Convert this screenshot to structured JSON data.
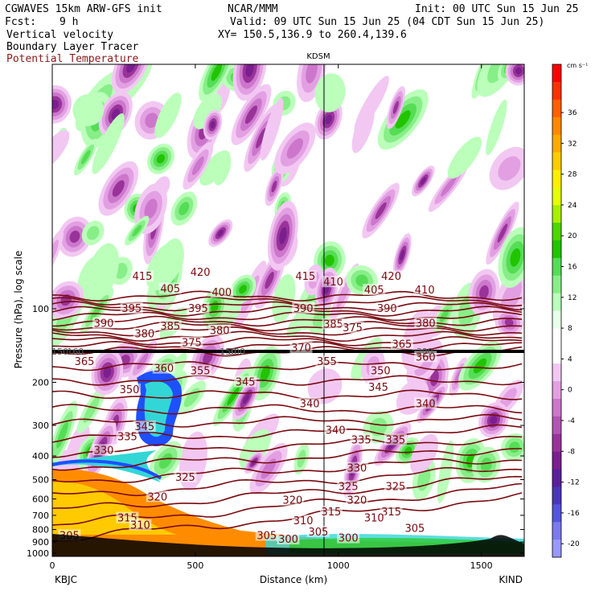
{
  "header": {
    "model": "CGWAVES 15km ARW-GFS init",
    "org": "NCAR/MMM",
    "init": "Init: 00 UTC Sun 15 Jun 25",
    "fcst_label": "Fcst:",
    "fcst_value": "9 h",
    "valid": "Valid: 09 UTC Sun 15 Jun 25 (04 CDT Sun 15 Jun 25)",
    "xy": "XY= 150.5,136.9 to 260.4,139.6",
    "field1": "Vertical velocity",
    "field2": "Boundary Layer Tracer",
    "field3": "Potential Temperature",
    "station_top": "KDSM",
    "station_left": "KBJC",
    "station_right": "KIND"
  },
  "colors": {
    "theta_contour": "#7a0a10",
    "tropopause_line": "#000000"
  },
  "chart_data": {
    "type": "heatmap",
    "xlabel": "Distance (km)",
    "ylabel": "Pressure (hPa), log scale",
    "x_ticks": [
      "0",
      "500",
      "1000",
      "1500"
    ],
    "xlim": [
      0,
      1650
    ],
    "y_ticks": [
      "100",
      "200",
      "300",
      "400",
      "500",
      "600",
      "700",
      "800",
      "900",
      "1000"
    ],
    "y_scale": "log",
    "marker_x_km": 950,
    "colorbar": {
      "units": "cm s⁻¹",
      "ticks": [
        "36",
        "32",
        "28",
        "24",
        "20",
        "16",
        "12",
        "8",
        "4",
        "0",
        "-4",
        "-8",
        "-12",
        "-16",
        "-20"
      ],
      "colors": [
        "#ff0000",
        "#ff3000",
        "#ff6000",
        "#ff8800",
        "#ffaa00",
        "#ffcc00",
        "#ffee00",
        "#e6ff00",
        "#a8ef00",
        "#4cd600",
        "#22c400",
        "#55dd55",
        "#88ee88",
        "#bbffbb",
        "#e8ffe8",
        "#ffffff",
        "#ffffff",
        "#f2c8f2",
        "#e2a0e2",
        "#cc77cc",
        "#b355b3",
        "#993399",
        "#7a1f8f",
        "#5b1f9c",
        "#4a37b8",
        "#5555dd",
        "#7a7aee",
        "#9999ff"
      ]
    },
    "theta_labels": [
      {
        "t": "415",
        "x": 210,
        "p": 74
      },
      {
        "t": "420",
        "x": 345,
        "p": 71
      },
      {
        "t": "415",
        "x": 590,
        "p": 74
      },
      {
        "t": "420",
        "x": 790,
        "p": 74
      },
      {
        "t": "405",
        "x": 275,
        "p": 83
      },
      {
        "t": "400",
        "x": 395,
        "p": 86
      },
      {
        "t": "410",
        "x": 655,
        "p": 78
      },
      {
        "t": "405",
        "x": 750,
        "p": 84
      },
      {
        "t": "410",
        "x": 868,
        "p": 84
      },
      {
        "t": "395",
        "x": 185,
        "p": 100
      },
      {
        "t": "395",
        "x": 340,
        "p": 100
      },
      {
        "t": "390",
        "x": 585,
        "p": 100
      },
      {
        "t": "390",
        "x": 780,
        "p": 100
      },
      {
        "t": "390",
        "x": 120,
        "p": 115
      },
      {
        "t": "385",
        "x": 275,
        "p": 118
      },
      {
        "t": "380",
        "x": 390,
        "p": 123
      },
      {
        "t": "385",
        "x": 655,
        "p": 116
      },
      {
        "t": "375",
        "x": 700,
        "p": 120
      },
      {
        "t": "380",
        "x": 870,
        "p": 115
      },
      {
        "t": "380",
        "x": 215,
        "p": 127
      },
      {
        "t": "375",
        "x": 325,
        "p": 138
      },
      {
        "t": "370",
        "x": 580,
        "p": 145
      },
      {
        "t": "365",
        "x": 815,
        "p": 140
      },
      {
        "t": "365",
        "x": 75,
        "p": 165
      },
      {
        "t": "360",
        "x": 260,
        "p": 176
      },
      {
        "t": "355",
        "x": 345,
        "p": 180
      },
      {
        "t": "355",
        "x": 640,
        "p": 165
      },
      {
        "t": "350",
        "x": 765,
        "p": 180
      },
      {
        "t": "360",
        "x": 870,
        "p": 158
      },
      {
        "t": "350",
        "x": 180,
        "p": 215
      },
      {
        "t": "345",
        "x": 450,
        "p": 200
      },
      {
        "t": "345",
        "x": 760,
        "p": 210
      },
      {
        "t": "340",
        "x": 600,
        "p": 245
      },
      {
        "t": "340",
        "x": 870,
        "p": 245
      },
      {
        "t": "345",
        "x": 215,
        "p": 305
      },
      {
        "t": "335",
        "x": 175,
        "p": 335
      },
      {
        "t": "340",
        "x": 660,
        "p": 315
      },
      {
        "t": "335",
        "x": 720,
        "p": 345
      },
      {
        "t": "335",
        "x": 800,
        "p": 345
      },
      {
        "t": "330",
        "x": 120,
        "p": 380
      },
      {
        "t": "330",
        "x": 710,
        "p": 450
      },
      {
        "t": "325",
        "x": 310,
        "p": 490
      },
      {
        "t": "325",
        "x": 690,
        "p": 535
      },
      {
        "t": "325",
        "x": 800,
        "p": 535
      },
      {
        "t": "320",
        "x": 245,
        "p": 590
      },
      {
        "t": "320",
        "x": 560,
        "p": 610
      },
      {
        "t": "320",
        "x": 710,
        "p": 610
      },
      {
        "t": "315",
        "x": 650,
        "p": 680
      },
      {
        "t": "315",
        "x": 790,
        "p": 680
      },
      {
        "t": "315",
        "x": 175,
        "p": 720
      },
      {
        "t": "310",
        "x": 585,
        "p": 740
      },
      {
        "t": "310",
        "x": 750,
        "p": 720
      },
      {
        "t": "310",
        "x": 205,
        "p": 770
      },
      {
        "t": "305",
        "x": 40,
        "p": 850
      },
      {
        "t": "305",
        "x": 500,
        "p": 850
      },
      {
        "t": "305",
        "x": 620,
        "p": 820
      },
      {
        "t": "300",
        "x": 550,
        "p": 880
      },
      {
        "t": "300",
        "x": 690,
        "p": 870
      },
      {
        "t": "305",
        "x": 845,
        "p": 795
      }
    ],
    "trop_labels": [
      {
        "t": "150",
        "x": 18
      },
      {
        "t": "160",
        "x": 54
      },
      {
        "t": "150",
        "x": 410
      },
      {
        "t": "300",
        "x": 430
      },
      {
        "t": "300",
        "x": 868
      }
    ],
    "theta_levels": [
      300,
      305,
      310,
      315,
      320,
      325,
      330,
      335,
      340,
      345,
      350,
      355,
      360,
      365,
      370,
      375,
      380,
      385,
      390,
      395,
      400,
      405,
      410,
      415,
      420
    ]
  }
}
